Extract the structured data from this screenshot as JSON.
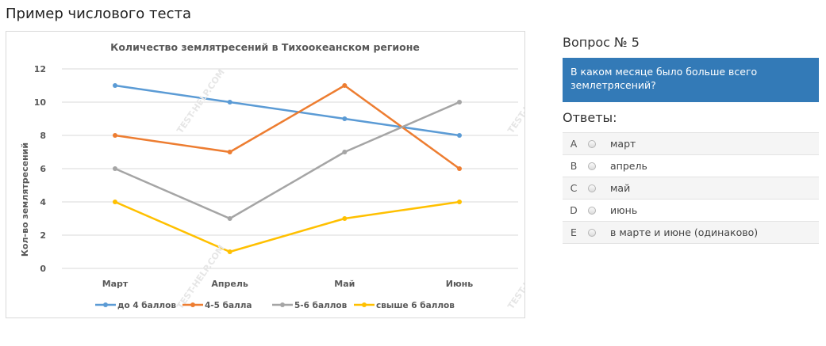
{
  "page": {
    "title": "Пример числового теста"
  },
  "question": {
    "number_label": "Вопрос № 5",
    "text": "В каком месяце было больше всего землетрясений?",
    "answers_label": "Ответы:",
    "answers": [
      {
        "letter": "A",
        "text": "март"
      },
      {
        "letter": "B",
        "text": "апрель"
      },
      {
        "letter": "C",
        "text": "май"
      },
      {
        "letter": "D",
        "text": "июнь"
      },
      {
        "letter": "E",
        "text": "в марте и июне (одинаково)"
      }
    ]
  },
  "watermark": "TEST-HELP.COM",
  "chart_data": {
    "type": "line",
    "title": "Количество землятресений в Тихоокеанском регионе",
    "xlabel": "",
    "ylabel": "Кол-во землятресений",
    "categories": [
      "Март",
      "Апрель",
      "Май",
      "Июнь"
    ],
    "ylim": [
      0,
      12
    ],
    "yticks": [
      0,
      2,
      4,
      6,
      8,
      10,
      12
    ],
    "grid": true,
    "legend_position": "bottom",
    "series": [
      {
        "name": "до 4 баллов",
        "color": "#5b9bd5",
        "values": [
          11,
          10,
          9,
          8
        ]
      },
      {
        "name": "4-5 балла",
        "color": "#ed7d31",
        "values": [
          8,
          7,
          11,
          6
        ]
      },
      {
        "name": "5-6 баллов",
        "color": "#a5a5a5",
        "values": [
          6,
          3,
          7,
          10
        ]
      },
      {
        "name": "свыше 6 баллов",
        "color": "#ffc000",
        "values": [
          4,
          1,
          3,
          4
        ]
      }
    ]
  }
}
